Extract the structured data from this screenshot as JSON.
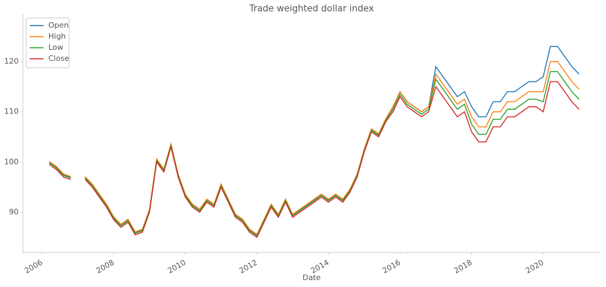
{
  "chart_data": {
    "type": "line",
    "title": "Trade weighted dollar index",
    "xlabel": "Date",
    "x": [
      2006.2,
      2006.4,
      2006.6,
      2006.8,
      2007.0,
      2007.2,
      2007.4,
      2007.6,
      2007.8,
      2008.0,
      2008.2,
      2008.4,
      2008.6,
      2008.8,
      2009.0,
      2009.2,
      2009.4,
      2009.6,
      2009.8,
      2010.0,
      2010.2,
      2010.4,
      2010.6,
      2010.8,
      2011.0,
      2011.2,
      2011.4,
      2011.6,
      2011.8,
      2012.0,
      2012.2,
      2012.4,
      2012.6,
      2012.8,
      2013.0,
      2013.2,
      2013.4,
      2013.6,
      2013.8,
      2014.0,
      2014.2,
      2014.4,
      2014.6,
      2014.8,
      2015.0,
      2015.2,
      2015.4,
      2015.6,
      2015.8,
      2016.0,
      2016.2,
      2016.4,
      2016.6,
      2016.8,
      2017.0,
      2017.2,
      2017.4,
      2017.6,
      2017.8,
      2018.0,
      2018.2,
      2018.4,
      2018.6,
      2018.8,
      2019.0,
      2019.2,
      2019.4,
      2019.6,
      2019.8,
      2020.0,
      2020.2,
      2020.4,
      2020.6,
      2020.8,
      2021.0
    ],
    "series": [
      {
        "name": "Open",
        "color": "#1f77b4",
        "values": [
          99.9,
          98.9,
          97.4,
          96.9,
          null,
          96.9,
          95.4,
          93.4,
          91.4,
          88.9,
          87.4,
          88.4,
          85.9,
          86.4,
          90.4,
          100.4,
          98.4,
          103.4,
          97.4,
          93.4,
          91.4,
          90.4,
          92.4,
          91.4,
          95.4,
          92.4,
          89.4,
          88.4,
          86.4,
          85.4,
          88.4,
          91.4,
          89.4,
          92.4,
          89.4,
          90.4,
          91.4,
          92.4,
          93.4,
          92.4,
          93.4,
          92.4,
          94.4,
          97.4,
          102.4,
          106.4,
          105.4,
          108.4,
          111,
          114,
          112,
          111,
          110,
          111,
          119,
          117,
          115,
          113,
          114,
          111,
          109,
          109,
          112,
          112,
          114,
          114,
          115,
          116,
          116,
          117,
          123,
          123,
          121,
          119,
          117.5
        ]
      },
      {
        "name": "High",
        "color": "#ff7f0e",
        "values": [
          100.1,
          99.1,
          97.6,
          97.1,
          null,
          97.1,
          95.6,
          93.6,
          91.6,
          89.1,
          87.6,
          88.6,
          86.1,
          86.6,
          90.6,
          100.6,
          98.6,
          103.6,
          97.6,
          93.6,
          91.6,
          90.6,
          92.6,
          91.6,
          95.6,
          92.6,
          89.6,
          88.6,
          86.6,
          85.6,
          88.6,
          91.6,
          89.6,
          92.6,
          89.6,
          90.6,
          91.6,
          92.6,
          93.6,
          92.6,
          93.6,
          92.6,
          94.6,
          97.6,
          102.6,
          106.6,
          105.6,
          108.6,
          111,
          114,
          112,
          111,
          110,
          111,
          117.5,
          115.5,
          113.5,
          111.5,
          112.5,
          109,
          107,
          107,
          110,
          110,
          112,
          112,
          113,
          114,
          114,
          114,
          120,
          120,
          118,
          116,
          114.5
        ]
      },
      {
        "name": "Low",
        "color": "#2ca02c",
        "values": [
          99.8,
          98.8,
          97.3,
          96.8,
          null,
          96.8,
          95.3,
          93.3,
          91.3,
          88.8,
          87.3,
          88.3,
          85.8,
          86.3,
          90.3,
          100.3,
          98.3,
          103.3,
          97.3,
          93.3,
          91.3,
          90.3,
          92.3,
          91.3,
          95.3,
          92.3,
          89.3,
          88.3,
          86.3,
          85.3,
          88.3,
          91.3,
          89.3,
          92.3,
          89.3,
          90.3,
          91.3,
          92.3,
          93.3,
          92.3,
          93.3,
          92.3,
          94.3,
          97.3,
          102.3,
          106.3,
          105.3,
          108.3,
          110.5,
          113.5,
          111.5,
          110.5,
          109.5,
          110.5,
          116.5,
          114.5,
          112.5,
          110.5,
          111.5,
          107.5,
          105.5,
          105.5,
          108.5,
          108.5,
          110.5,
          110.5,
          111.5,
          112.5,
          112.5,
          112,
          118,
          118,
          116,
          114,
          112.5
        ]
      },
      {
        "name": "Close",
        "color": "#d62728",
        "values": [
          99.5,
          98.5,
          97,
          96.5,
          null,
          96.5,
          95,
          93,
          91,
          88.5,
          87,
          88,
          85.5,
          86,
          90,
          100,
          98,
          103,
          97,
          93,
          91,
          90,
          92,
          91,
          95,
          92,
          89,
          88,
          86,
          85,
          88,
          91,
          89,
          92,
          89,
          90,
          91,
          92,
          93,
          92,
          93,
          92,
          94,
          97,
          102,
          106,
          105,
          108,
          110,
          113,
          111,
          110,
          109,
          110,
          115,
          113,
          111,
          109,
          110,
          106,
          104,
          104,
          107,
          107,
          109,
          109,
          110,
          111,
          111,
          110,
          116,
          116,
          114,
          112,
          110.5
        ]
      }
    ],
    "xlim": [
      2005.46,
      2021.58
    ],
    "xticks": [
      2006,
      2008,
      2010,
      2012,
      2014,
      2016,
      2018,
      2020
    ],
    "ylim": [
      82.0,
      129.5
    ],
    "yticks": [
      90,
      100,
      110,
      120
    ],
    "legend": "upper left"
  }
}
